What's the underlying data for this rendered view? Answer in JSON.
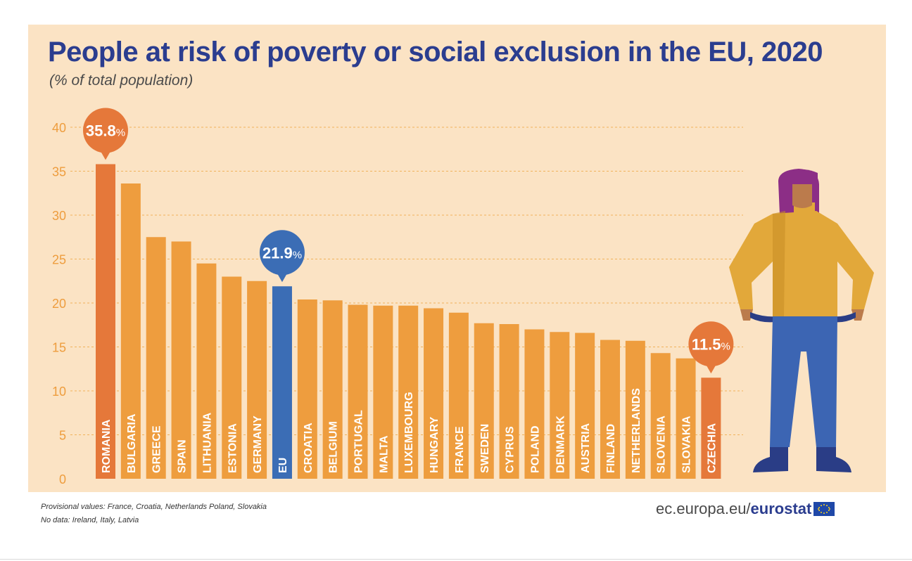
{
  "header": {
    "title": "People at risk of poverty or social exclusion in the EU, 2020",
    "subtitle": "(% of total population)"
  },
  "footer": {
    "note_1": "Provisional values: France, Croatia, Netherlands Poland,  Slovakia",
    "note_2": "No data: Ireland, Italy, Latvia",
    "brand_prefix": "ec.europa.eu/",
    "brand_strong": "eurostat"
  },
  "colors": {
    "bar": "#ee9d3e",
    "highlight_max_min": "#e5783a",
    "eu_bar": "#3b6db5",
    "background": "#fbe3c4",
    "title": "#2b3d8f",
    "axis_text": "#ee9d3e"
  },
  "chart_data": {
    "type": "bar",
    "title": "People at risk of poverty or social exclusion in the EU, 2020",
    "subtitle": "(% of total population)",
    "ylabel": "",
    "xlabel": "",
    "ylim": [
      0,
      40
    ],
    "yticks": [
      0,
      5,
      10,
      15,
      20,
      25,
      30,
      35,
      40
    ],
    "grid": true,
    "categories": [
      "ROMANIA",
      "BULGARIA",
      "GREECE",
      "SPAIN",
      "LITHUANIA",
      "ESTONIA",
      "GERMANY",
      "EU",
      "CROATIA",
      "BELGIUM",
      "PORTUGAL",
      "MALTA",
      "LUXEMBOURG",
      "HUNGARY",
      "FRANCE",
      "SWEDEN",
      "CYPRUS",
      "POLAND",
      "DENMARK",
      "AUSTRIA",
      "FINLAND",
      "NETHERLANDS",
      "SLOVENIA",
      "SLOVAKIA",
      "CZECHIA"
    ],
    "values": [
      35.8,
      33.6,
      27.5,
      27.0,
      24.5,
      23.0,
      22.5,
      21.9,
      20.4,
      20.3,
      19.8,
      19.7,
      19.7,
      19.4,
      18.9,
      17.7,
      17.6,
      17.0,
      16.7,
      16.6,
      15.8,
      15.7,
      14.3,
      13.7,
      11.5
    ],
    "annotations": [
      {
        "category": "ROMANIA",
        "value": "35.8",
        "unit": "%"
      },
      {
        "category": "EU",
        "value": "21.9",
        "unit": "%"
      },
      {
        "category": "CZECHIA",
        "value": "11.5",
        "unit": "%"
      }
    ]
  }
}
